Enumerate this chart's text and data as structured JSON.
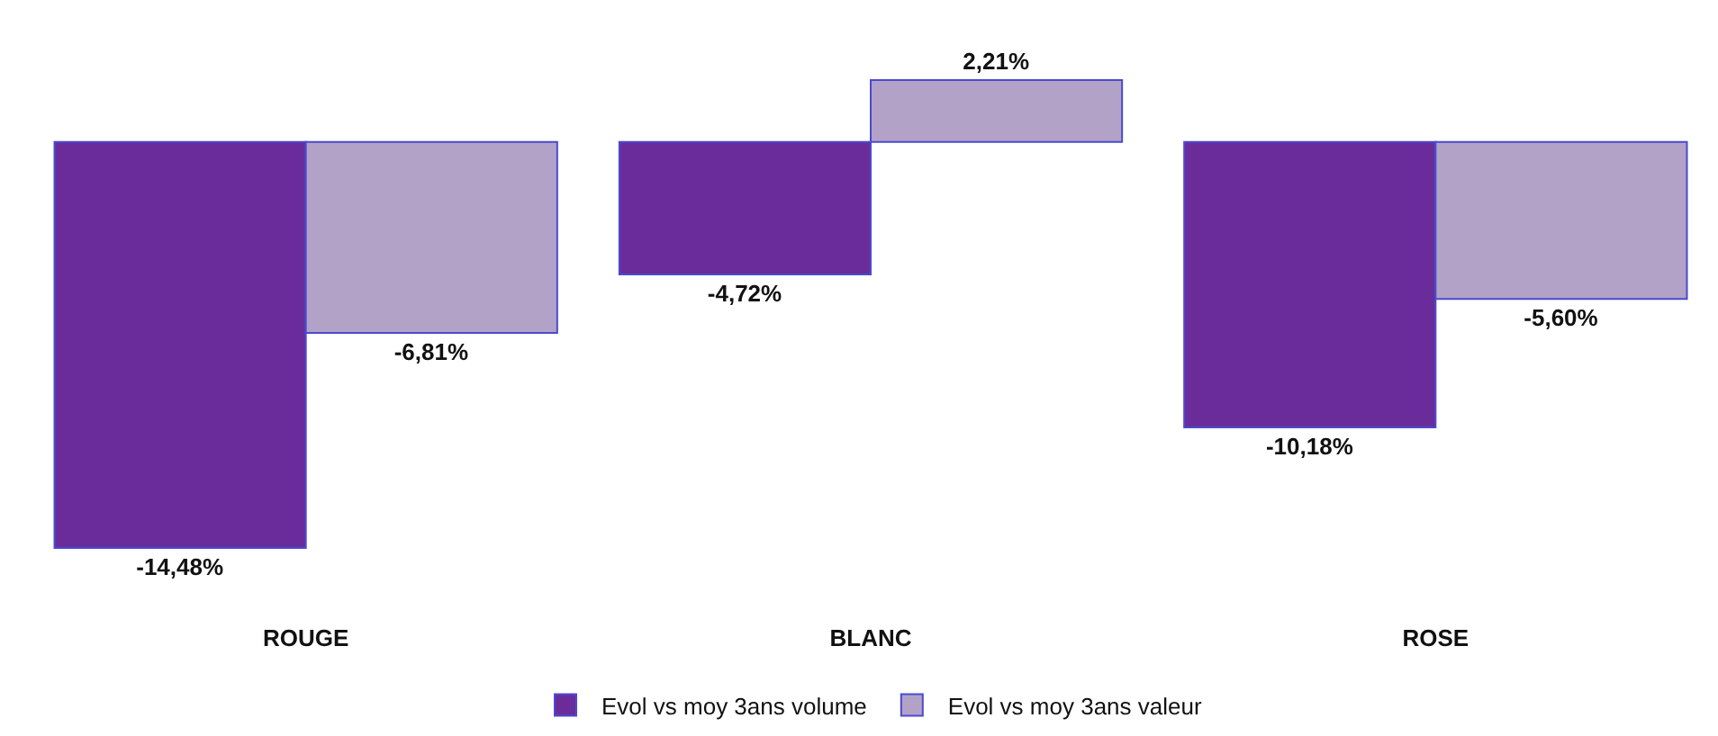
{
  "chart_data": {
    "type": "bar",
    "categories": [
      "ROUGE",
      "BLANC",
      "ROSE"
    ],
    "series": [
      {
        "name": "Evol vs moy 3ans volume",
        "color": "#6a2c9a",
        "values": [
          -14.48,
          -4.72,
          -10.18
        ],
        "value_labels": [
          "-14,48%",
          "-4,72%",
          "-10,18%"
        ]
      },
      {
        "name": "Evol vs moy 3ans valeur",
        "color": "#b3a2c8",
        "values": [
          -6.81,
          2.21,
          -5.6
        ],
        "value_labels": [
          "-6,81%",
          "2,21%",
          "-5,60%"
        ]
      }
    ],
    "legend": "bottom"
  }
}
